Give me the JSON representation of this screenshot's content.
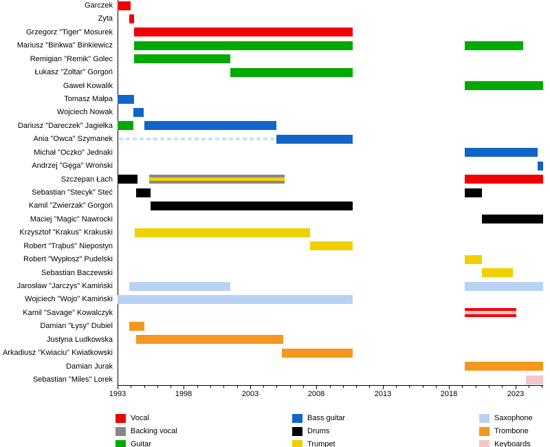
{
  "chart_data": {
    "type": "bar",
    "subtype": "horizontal-timeline-gantt",
    "title": "",
    "xlabel": "",
    "ylabel": "",
    "xlim": [
      1993,
      2025.1
    ],
    "x_major_ticks": [
      1993,
      1998,
      2003,
      2008,
      2013,
      2018,
      2023
    ],
    "x_minor_tick_interval": 1,
    "grid": false,
    "legend_position": "bottom",
    "roles": {
      "vocal": {
        "label": "Vocal",
        "color": "#f00000"
      },
      "backing_vocal": {
        "label": "Backing vocal",
        "color": "#888888"
      },
      "guitar": {
        "label": "Guitar",
        "color": "#00aa00"
      },
      "bass": {
        "label": "Bass guitar",
        "color": "#1065c8"
      },
      "drums": {
        "label": "Drums",
        "color": "#000000"
      },
      "trumpet": {
        "label": "Trumpet",
        "color": "#f0d000"
      },
      "saxophone": {
        "label": "Saxophone",
        "color": "#b9d1f5"
      },
      "trombone": {
        "label": "Trombone",
        "color": "#f5971e"
      },
      "keyboards": {
        "label": "Keyboards",
        "color": "#f4c7c9"
      }
    },
    "session_dash_color": "#ccdef8",
    "legend_columns": [
      [
        "vocal",
        "backing_vocal",
        "guitar"
      ],
      [
        "bass",
        "drums",
        "trumpet"
      ],
      [
        "saxophone",
        "trombone",
        "keyboards"
      ]
    ],
    "members": [
      {
        "name": "Garczek",
        "segments": [
          {
            "start": 1993.0,
            "end": 1994.0,
            "roles": [
              "vocal"
            ]
          }
        ]
      },
      {
        "name": "Zyta",
        "segments": [
          {
            "start": 1993.9,
            "end": 1994.25,
            "roles": [
              "vocal"
            ]
          }
        ]
      },
      {
        "name": "Grzegorz \"Tiger\" Mosurek",
        "segments": [
          {
            "start": 1994.25,
            "end": 2010.75,
            "roles": [
              "vocal"
            ]
          }
        ]
      },
      {
        "name": "Mariusz \"Binkwa\" Binkiewicz",
        "segments": [
          {
            "start": 1994.25,
            "end": 2010.75,
            "roles": [
              "guitar"
            ]
          },
          {
            "start": 2019.2,
            "end": 2023.6,
            "roles": [
              "guitar"
            ]
          }
        ]
      },
      {
        "name": "Remigian \"Remik\" Golec",
        "segments": [
          {
            "start": 1994.25,
            "end": 2001.5,
            "roles": [
              "guitar"
            ]
          }
        ]
      },
      {
        "name": "Łukasz \"Zoltar\" Gorgoń",
        "segments": [
          {
            "start": 2001.5,
            "end": 2010.75,
            "roles": [
              "guitar"
            ]
          }
        ]
      },
      {
        "name": "Gaweł Kowalik",
        "segments": [
          {
            "start": 2019.2,
            "end": 2025.1,
            "roles": [
              "guitar"
            ]
          }
        ]
      },
      {
        "name": "Tomasz Małpa",
        "segments": [
          {
            "start": 1993.0,
            "end": 1994.25,
            "roles": [
              "bass"
            ]
          }
        ]
      },
      {
        "name": "Wojciech Nowak",
        "segments": [
          {
            "start": 1994.2,
            "end": 1995.0,
            "roles": [
              "bass"
            ]
          }
        ]
      },
      {
        "name": "Dariusz \"Dareczek\" Jagiełka",
        "segments": [
          {
            "start": 1993.0,
            "end": 1994.2,
            "roles": [
              "guitar"
            ]
          },
          {
            "start": 1995.0,
            "end": 2005.0,
            "roles": [
              "bass"
            ]
          }
        ]
      },
      {
        "name": "Ania \"Owca\" Szymanek",
        "segments": [
          {
            "start": 1993.1,
            "end": 2005.0,
            "roles": [
              "bass"
            ],
            "style": "session-dashed"
          },
          {
            "start": 2005.0,
            "end": 2010.75,
            "roles": [
              "bass"
            ]
          }
        ]
      },
      {
        "name": "Michał \"Oczko\" Jednaki",
        "segments": [
          {
            "start": 2019.2,
            "end": 2024.7,
            "roles": [
              "bass"
            ]
          }
        ]
      },
      {
        "name": "Andrzej \"Gęga\" Wroński",
        "segments": [
          {
            "start": 2024.7,
            "end": 2025.1,
            "roles": [
              "bass"
            ]
          }
        ]
      },
      {
        "name": "Szczepan Łach",
        "segments": [
          {
            "start": 1993.0,
            "end": 1994.5,
            "roles": [
              "drums"
            ]
          },
          {
            "start": 1995.4,
            "end": 2005.6,
            "roles": [
              "backing_vocal",
              "trumpet"
            ]
          },
          {
            "start": 2019.2,
            "end": 2025.1,
            "roles": [
              "vocal"
            ]
          }
        ]
      },
      {
        "name": "Sebastian \"Stecyk\" Steć",
        "segments": [
          {
            "start": 1994.4,
            "end": 1995.5,
            "roles": [
              "drums"
            ]
          },
          {
            "start": 2019.2,
            "end": 2020.5,
            "roles": [
              "drums"
            ]
          }
        ]
      },
      {
        "name": "Kamil \"Zwierzak\" Gorgoń",
        "segments": [
          {
            "start": 1995.5,
            "end": 2010.75,
            "roles": [
              "drums"
            ]
          }
        ]
      },
      {
        "name": "Maciej \"Magic\" Nawrocki",
        "segments": [
          {
            "start": 2020.5,
            "end": 2025.1,
            "roles": [
              "drums"
            ]
          }
        ]
      },
      {
        "name": "Krzysztof \"Krakus\" Krakuski",
        "segments": [
          {
            "start": 1994.3,
            "end": 2007.5,
            "roles": [
              "trumpet"
            ]
          }
        ]
      },
      {
        "name": "Robert \"Trąbuś\" Niepostyn",
        "segments": [
          {
            "start": 2007.5,
            "end": 2010.75,
            "roles": [
              "trumpet"
            ]
          }
        ]
      },
      {
        "name": "Robert \"Wypłosz\" Pudelski",
        "segments": [
          {
            "start": 2019.2,
            "end": 2020.5,
            "roles": [
              "trumpet"
            ]
          }
        ]
      },
      {
        "name": "Sebastian Baczewski",
        "segments": [
          {
            "start": 2020.5,
            "end": 2022.8,
            "roles": [
              "trumpet"
            ]
          }
        ]
      },
      {
        "name": "Jarosław \"Jarczys\" Kamiński",
        "segments": [
          {
            "start": 1993.9,
            "end": 2001.5,
            "roles": [
              "saxophone"
            ]
          },
          {
            "start": 2019.2,
            "end": 2025.1,
            "roles": [
              "saxophone"
            ]
          }
        ]
      },
      {
        "name": "Wojciech \"Wojo\" Kamiński",
        "segments": [
          {
            "start": 1993.0,
            "end": 2010.75,
            "roles": [
              "saxophone"
            ]
          }
        ]
      },
      {
        "name": "Kamil \"Savage\" Kowalczyk",
        "segments": [
          {
            "start": 2019.2,
            "end": 2023.1,
            "roles": [
              "vocal",
              "keyboards"
            ]
          }
        ]
      },
      {
        "name": "Damian \"Łysy\" Dubiel",
        "segments": [
          {
            "start": 1993.9,
            "end": 1995.0,
            "roles": [
              "trombone"
            ]
          }
        ]
      },
      {
        "name": "Justyna Ludkowska",
        "segments": [
          {
            "start": 1994.4,
            "end": 2005.5,
            "roles": [
              "trombone"
            ]
          }
        ]
      },
      {
        "name": "Arkadiusz \"Kwiaciu\" Kwiatkowski",
        "segments": [
          {
            "start": 2005.4,
            "end": 2010.75,
            "roles": [
              "trombone"
            ]
          }
        ]
      },
      {
        "name": "Damian Jurak",
        "segments": [
          {
            "start": 2019.2,
            "end": 2025.1,
            "roles": [
              "trombone"
            ]
          }
        ]
      },
      {
        "name": "Sebastian \"Miles\" Lorek",
        "segments": [
          {
            "start": 2023.8,
            "end": 2025.1,
            "roles": [
              "keyboards"
            ]
          }
        ]
      }
    ]
  }
}
